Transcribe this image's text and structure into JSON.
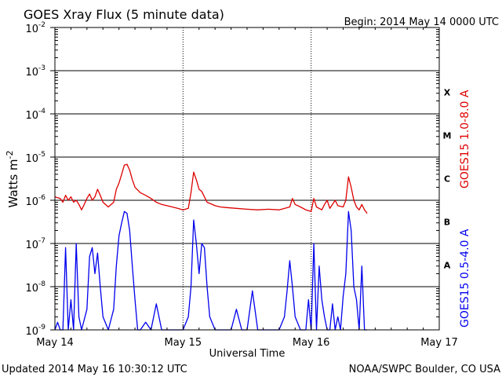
{
  "title": "GOES Xray Flux (5 minute data)",
  "begin_label": "Begin:  2014 May 14 0000 UTC",
  "updated_label": "Updated 2014 May 16 10:30:12 UTC",
  "credit_label": "NOAA/SWPC Boulder, CO USA",
  "colors": {
    "long": "#dd0000",
    "short": "#0000ee",
    "axis": "#000000"
  },
  "chart_data": {
    "type": "line",
    "xlabel": "Universal Time",
    "ylabel": "Watts m",
    "ylabel_exponent": "-2",
    "xlim": [
      0,
      72
    ],
    "yscale": "log",
    "ylim": [
      1e-09,
      0.01
    ],
    "x_ticks": [
      {
        "hour": 0,
        "label": "May 14"
      },
      {
        "hour": 24,
        "label": "May 15"
      },
      {
        "hour": 48,
        "label": "May 16"
      },
      {
        "hour": 72,
        "label": "May 17"
      }
    ],
    "y_ticks": [
      {
        "exp": -2,
        "label": "10",
        "sup": "-2"
      },
      {
        "exp": -3,
        "label": "10",
        "sup": "-3"
      },
      {
        "exp": -4,
        "label": "10",
        "sup": "-4"
      },
      {
        "exp": -5,
        "label": "10",
        "sup": "-5"
      },
      {
        "exp": -6,
        "label": "10",
        "sup": "-6"
      },
      {
        "exp": -7,
        "label": "10",
        "sup": "-7"
      },
      {
        "exp": -8,
        "label": "10",
        "sup": "-8"
      },
      {
        "exp": -9,
        "label": "10",
        "sup": "-9"
      }
    ],
    "flare_classes": [
      {
        "label": "X",
        "exp": -3.5
      },
      {
        "label": "M",
        "exp": -4.5
      },
      {
        "label": "C",
        "exp": -5.5
      },
      {
        "label": "B",
        "exp": -6.5
      },
      {
        "label": "A",
        "exp": -7.5
      }
    ],
    "grid": "horizontal at each decade, dotted vertical at day boundaries",
    "series": [
      {
        "name": "GOES15 1.0-8.0 A",
        "points": [
          [
            0,
            1.2e-06
          ],
          [
            1,
            1.1e-06
          ],
          [
            1.5,
            9e-07
          ],
          [
            2,
            1.3e-06
          ],
          [
            2.5,
            1e-06
          ],
          [
            3,
            1.2e-06
          ],
          [
            3.5,
            9e-07
          ],
          [
            4,
            1e-06
          ],
          [
            4.5,
            8e-07
          ],
          [
            5,
            6e-07
          ],
          [
            5.5,
            8e-07
          ],
          [
            6,
            1.1e-06
          ],
          [
            6.5,
            1.4e-06
          ],
          [
            7,
            1e-06
          ],
          [
            7.5,
            1.2e-06
          ],
          [
            8,
            1.8e-06
          ],
          [
            8.5,
            1.3e-06
          ],
          [
            9,
            9e-07
          ],
          [
            10,
            7e-07
          ],
          [
            11,
            9e-07
          ],
          [
            11.5,
            1.8e-06
          ],
          [
            12,
            2.5e-06
          ],
          [
            12.5,
            4e-06
          ],
          [
            13,
            6.5e-06
          ],
          [
            13.5,
            6.8e-06
          ],
          [
            14,
            5e-06
          ],
          [
            14.5,
            3e-06
          ],
          [
            15,
            2e-06
          ],
          [
            16,
            1.5e-06
          ],
          [
            17,
            1.3e-06
          ],
          [
            18,
            1.1e-06
          ],
          [
            19,
            9e-07
          ],
          [
            20,
            8e-07
          ],
          [
            21,
            7.5e-07
          ],
          [
            22,
            7e-07
          ],
          [
            23,
            6.5e-07
          ],
          [
            24,
            6e-07
          ],
          [
            25,
            6.5e-07
          ],
          [
            25.5,
            1.5e-06
          ],
          [
            26,
            4.5e-06
          ],
          [
            26.5,
            3e-06
          ],
          [
            27,
            1.8e-06
          ],
          [
            27.5,
            1.6e-06
          ],
          [
            28,
            1.2e-06
          ],
          [
            28.5,
            9e-07
          ],
          [
            29,
            8.5e-07
          ],
          [
            30,
            7.5e-07
          ],
          [
            31,
            7e-07
          ],
          [
            32,
            6.8e-07
          ],
          [
            34,
            6.5e-07
          ],
          [
            36,
            6.2e-07
          ],
          [
            38,
            6e-07
          ],
          [
            40,
            6.2e-07
          ],
          [
            42,
            6e-07
          ],
          [
            44,
            7e-07
          ],
          [
            44.5,
            1.1e-06
          ],
          [
            45,
            8e-07
          ],
          [
            46,
            7e-07
          ],
          [
            47,
            6e-07
          ],
          [
            48,
            5.5e-07
          ],
          [
            48.5,
            1.1e-06
          ],
          [
            49,
            7e-07
          ],
          [
            50,
            6e-07
          ],
          [
            50.5,
            8e-07
          ],
          [
            51,
            1e-06
          ],
          [
            51.5,
            6.5e-07
          ],
          [
            52,
            8e-07
          ],
          [
            52.5,
            1e-06
          ],
          [
            53,
            7.5e-07
          ],
          [
            54,
            7e-07
          ],
          [
            54.5,
            1e-06
          ],
          [
            55,
            3.5e-06
          ],
          [
            55.5,
            2e-06
          ],
          [
            56,
            1e-06
          ],
          [
            56.5,
            7e-07
          ],
          [
            57,
            6e-07
          ],
          [
            57.5,
            8e-07
          ],
          [
            58,
            6e-07
          ],
          [
            58.5,
            5e-07
          ]
        ]
      },
      {
        "name": "GOES15 0.5-4.0 A",
        "points": [
          [
            0,
            1e-09
          ],
          [
            0.5,
            1.5e-09
          ],
          [
            1,
            1e-09
          ],
          [
            1.5,
            1e-09
          ],
          [
            2,
            8e-08
          ],
          [
            2.5,
            1e-09
          ],
          [
            3,
            5e-09
          ],
          [
            3.5,
            1e-09
          ],
          [
            4,
            1e-07
          ],
          [
            4.5,
            2e-09
          ],
          [
            5,
            1e-09
          ],
          [
            6,
            3e-09
          ],
          [
            6.5,
            5e-08
          ],
          [
            7,
            8e-08
          ],
          [
            7.5,
            2e-08
          ],
          [
            8,
            6e-08
          ],
          [
            8.5,
            1e-08
          ],
          [
            9,
            2e-09
          ],
          [
            10,
            1e-09
          ],
          [
            11,
            3e-09
          ],
          [
            11.5,
            3e-08
          ],
          [
            12,
            1.5e-07
          ],
          [
            12.5,
            3e-07
          ],
          [
            13,
            5.5e-07
          ],
          [
            13.5,
            5e-07
          ],
          [
            14,
            2e-07
          ],
          [
            14.5,
            3e-08
          ],
          [
            15,
            5e-09
          ],
          [
            15.5,
            1e-09
          ],
          [
            16,
            1e-09
          ],
          [
            17,
            1.5e-09
          ],
          [
            18,
            1e-09
          ],
          [
            19,
            4e-09
          ],
          [
            20,
            1e-09
          ],
          [
            21,
            1e-09
          ],
          [
            22,
            1e-09
          ],
          [
            23,
            1e-09
          ],
          [
            24,
            1e-09
          ],
          [
            25,
            2e-09
          ],
          [
            25.5,
            1e-08
          ],
          [
            26,
            3.5e-07
          ],
          [
            26.5,
            1e-07
          ],
          [
            27,
            2e-08
          ],
          [
            27.5,
            1e-07
          ],
          [
            28,
            8e-08
          ],
          [
            28.5,
            1e-08
          ],
          [
            29,
            2e-09
          ],
          [
            30,
            1e-09
          ],
          [
            31,
            1e-09
          ],
          [
            32,
            1e-09
          ],
          [
            33,
            1e-09
          ],
          [
            34,
            3e-09
          ],
          [
            35,
            1e-09
          ],
          [
            36,
            1e-09
          ],
          [
            37,
            8e-09
          ],
          [
            38,
            1e-09
          ],
          [
            39,
            1e-09
          ],
          [
            40,
            1e-09
          ],
          [
            41,
            1e-09
          ],
          [
            42,
            1e-09
          ],
          [
            43,
            2e-09
          ],
          [
            43.5,
            8e-09
          ],
          [
            44,
            4e-08
          ],
          [
            44.5,
            1e-08
          ],
          [
            45,
            2e-09
          ],
          [
            46,
            1e-09
          ],
          [
            47,
            1e-09
          ],
          [
            47.5,
            5e-09
          ],
          [
            48,
            1e-09
          ],
          [
            48.5,
            1e-07
          ],
          [
            49,
            1e-09
          ],
          [
            49.5,
            3e-08
          ],
          [
            50,
            5e-09
          ],
          [
            50.5,
            2e-09
          ],
          [
            51,
            1e-09
          ],
          [
            51.5,
            1e-09
          ],
          [
            52,
            4e-09
          ],
          [
            52.5,
            1e-09
          ],
          [
            53,
            2e-09
          ],
          [
            53.5,
            1e-09
          ],
          [
            54,
            6e-09
          ],
          [
            54.5,
            2e-08
          ],
          [
            55,
            5.5e-07
          ],
          [
            55.5,
            2e-07
          ],
          [
            56,
            1e-08
          ],
          [
            56.5,
            5e-09
          ],
          [
            57,
            1e-09
          ],
          [
            57.5,
            3e-08
          ],
          [
            58,
            1e-09
          ],
          [
            58.5,
            1e-09
          ]
        ]
      }
    ]
  }
}
